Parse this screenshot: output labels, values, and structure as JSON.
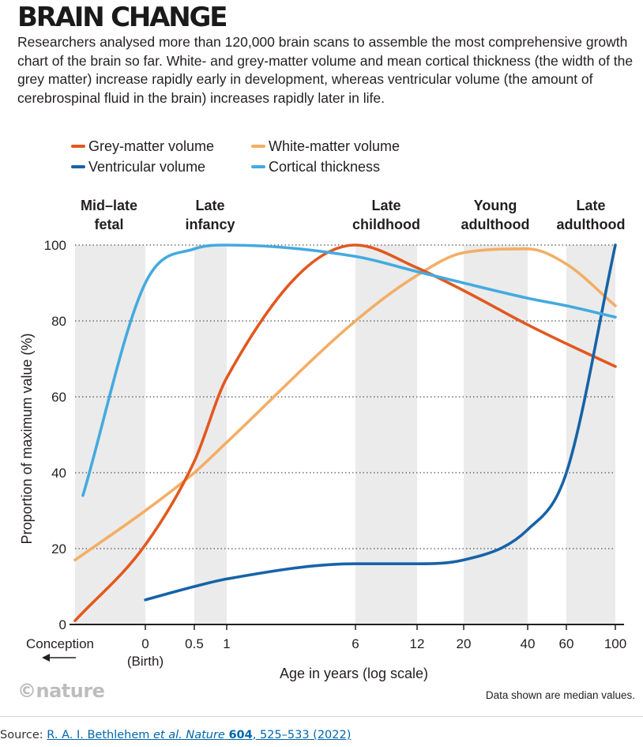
{
  "title": "BRAIN CHANGE",
  "subtitle": "Researchers analysed more than 120,000 brain scans to assemble the most comprehensive growth chart of the brain so far. White- and grey-matter volume and mean cortical thickness (the width of the grey matter) increase rapidly early in development, whereas ventricular volume (the amount of cerebrospinal fluid in the brain) increases rapidly later in life.",
  "note": "Data shown are median values.",
  "logo": "©nature",
  "source": {
    "prefix": "Source: ",
    "authors": "R. A. I. Bethlehem ",
    "etal": "et al. Nature",
    "volume": "604",
    "pages": ", 525–533 (2022)"
  },
  "chart_data": {
    "type": "line",
    "xlabel": "Age in years (log scale)",
    "ylabel": "Proportion of maximum value (%)",
    "ylim": [
      0,
      100
    ],
    "yticks": [
      0,
      20,
      40,
      60,
      80,
      100
    ],
    "xticks": [
      "Conception",
      "0",
      "0.5",
      "1",
      "6",
      "12",
      "20",
      "40",
      "60",
      "100"
    ],
    "x_birth_label": "(Birth)",
    "grid": "dotted horizontal",
    "legend_position": "top",
    "stages": [
      {
        "label": [
          "Mid–late",
          "fetal"
        ],
        "range": [
          "Conception",
          "0"
        ]
      },
      {
        "label": [
          "Late",
          "infancy"
        ],
        "range": [
          "0.5",
          "1"
        ]
      },
      {
        "label": [
          "Late",
          "childhood"
        ],
        "range": [
          "6",
          "12"
        ]
      },
      {
        "label": [
          "Young",
          "adulthood"
        ],
        "range": [
          "20",
          "40"
        ]
      },
      {
        "label": [
          "Late",
          "adulthood"
        ],
        "range": [
          "60",
          "100"
        ]
      }
    ],
    "series": [
      {
        "name": "Grey-matter volume",
        "color": "#e2581f",
        "x": [
          "Conception",
          "0",
          "0.5",
          "1",
          "6",
          "12",
          "20",
          "40",
          "60",
          "100"
        ],
        "values": [
          1,
          21,
          43,
          65,
          100,
          94,
          88,
          79,
          74,
          68
        ]
      },
      {
        "name": "White-matter volume",
        "color": "#f3ae66",
        "x": [
          "Conception",
          "0",
          "0.5",
          "1",
          "6",
          "12",
          "20",
          "40",
          "60",
          "100"
        ],
        "values": [
          17,
          30,
          40,
          48,
          80,
          92,
          98,
          99,
          95,
          84
        ]
      },
      {
        "name": "Ventricular volume",
        "color": "#1663a8",
        "x": [
          "0",
          "0.5",
          "1",
          "6",
          "12",
          "20",
          "40",
          "60",
          "100"
        ],
        "values": [
          6.5,
          10,
          12,
          16,
          16,
          17,
          25,
          40,
          100
        ]
      },
      {
        "name": "Cortical thickness",
        "color": "#44aadf",
        "x": [
          "Conception",
          "0",
          "0.5",
          "1",
          "6",
          "12",
          "20",
          "40",
          "60",
          "100"
        ],
        "values": [
          34,
          90,
          99,
          100,
          97,
          93,
          90,
          86,
          84,
          81
        ]
      }
    ]
  }
}
